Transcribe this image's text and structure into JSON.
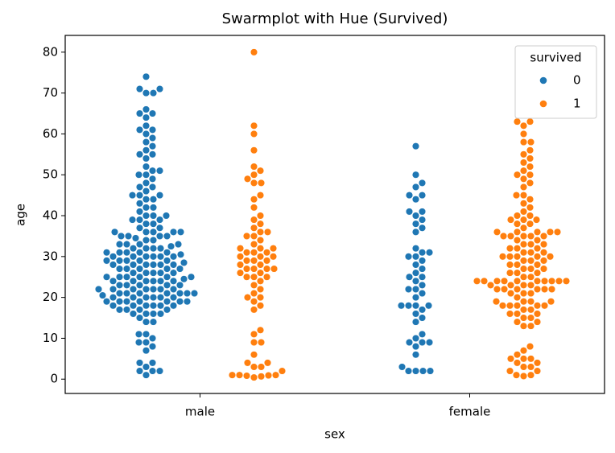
{
  "chart_data": {
    "type": "swarm",
    "title": "Swarmplot with Hue (Survived)",
    "x_label": "sex",
    "y_label": "age",
    "categories": [
      "male",
      "female"
    ],
    "legend_title": "survived",
    "legend": "upper right",
    "ylim": [
      -3.5,
      84.1
    ],
    "yticks": [
      0,
      10,
      20,
      30,
      40,
      50,
      60,
      70,
      80
    ],
    "series": [
      {
        "name": "0",
        "color": "#1f77b4",
        "values": [
          [
            1,
            2,
            2,
            2,
            3,
            4,
            4,
            7,
            8,
            9,
            9,
            10,
            11,
            11,
            14,
            14,
            15,
            16,
            16,
            16,
            16,
            17,
            17,
            17,
            18,
            18,
            18,
            18,
            19,
            19,
            19,
            19,
            19,
            20,
            20,
            20,
            20,
            20.5,
            21,
            21,
            21,
            21,
            21,
            22,
            22,
            22,
            22,
            22,
            23,
            23,
            23,
            24,
            24,
            24,
            24,
            24.5,
            25,
            25,
            25,
            25,
            26,
            26,
            26,
            27,
            27,
            27,
            28,
            28,
            28,
            28,
            28.5,
            29,
            29,
            29,
            30,
            30,
            30,
            30,
            30.5,
            31,
            31,
            31,
            32,
            32,
            32,
            32.5,
            33,
            33,
            34,
            34,
            34.5,
            35,
            35,
            35,
            36,
            36,
            36,
            37,
            37,
            38,
            38,
            39,
            39,
            40,
            40,
            40,
            41,
            42,
            42,
            43,
            44,
            44,
            45,
            45,
            46,
            47,
            47,
            48,
            49,
            50,
            50,
            51,
            51,
            52,
            54,
            55,
            55,
            56,
            57,
            58,
            59,
            60,
            61,
            61,
            62,
            64,
            65,
            65,
            66,
            70,
            70,
            71,
            71,
            74,
            17,
            18,
            19,
            20,
            21,
            22,
            23,
            24,
            25,
            26,
            27,
            28,
            29,
            30,
            31,
            32,
            33,
            35,
            36,
            18,
            19,
            20,
            21,
            22,
            23,
            24,
            25,
            26,
            27,
            28,
            29,
            30,
            31,
            33,
            36,
            39,
            45
          ],
          [
            2,
            2,
            2,
            2,
            3,
            6,
            8,
            9,
            9,
            9,
            10,
            11,
            14,
            15,
            16,
            17,
            18,
            18,
            18,
            18,
            20,
            21,
            22,
            22,
            23,
            24,
            25,
            25,
            26,
            27,
            28,
            29,
            30,
            30,
            31,
            31,
            32,
            36,
            37,
            38,
            39,
            40,
            41,
            41,
            44,
            45,
            45,
            47,
            48,
            50,
            57
          ]
        ]
      },
      {
        "name": "1",
        "color": "#ff7f0e",
        "values": [
          [
            0.42,
            0.67,
            0.83,
            0.92,
            1,
            1,
            1,
            2,
            3,
            3,
            4,
            4,
            6,
            9,
            9,
            11,
            12,
            17,
            18,
            19,
            20,
            20,
            21,
            22,
            23,
            24,
            25,
            25,
            26,
            26,
            27,
            27,
            28,
            29,
            29,
            30,
            30,
            31,
            31,
            32,
            32,
            32,
            33,
            34,
            35,
            35,
            36,
            36,
            37,
            38,
            39,
            40,
            42,
            44,
            45,
            48,
            48,
            49,
            50,
            51,
            52,
            56,
            60,
            62,
            80,
            25,
            27,
            28,
            30,
            27,
            29,
            31
          ],
          [
            0.75,
            1,
            1,
            2,
            2,
            3,
            3,
            4,
            4,
            5,
            5,
            5,
            6,
            7,
            8,
            13,
            13,
            14,
            14,
            15,
            15,
            16,
            16,
            16,
            17,
            17,
            18,
            18,
            18,
            18,
            19,
            19,
            19,
            21,
            21,
            22,
            22,
            22,
            22,
            22,
            23,
            23,
            23,
            24,
            24,
            24,
            24,
            24,
            24,
            24,
            24,
            25,
            25,
            26,
            26,
            27,
            27,
            28,
            28,
            29,
            29,
            30,
            30,
            30,
            30,
            31,
            31,
            32,
            32,
            33,
            33,
            34,
            35,
            35,
            35,
            35,
            36,
            36,
            36,
            36,
            37,
            38,
            38,
            39,
            39,
            39,
            40,
            40,
            41,
            42,
            43,
            44,
            45,
            45,
            47,
            48,
            49,
            50,
            50,
            51,
            52,
            53,
            54,
            55,
            56,
            58,
            58,
            60,
            62,
            63,
            63,
            18,
            19,
            20,
            21,
            22,
            23,
            24,
            24,
            26,
            27,
            28,
            29,
            30,
            31,
            32,
            33,
            34,
            35,
            36
          ]
        ]
      }
    ]
  }
}
